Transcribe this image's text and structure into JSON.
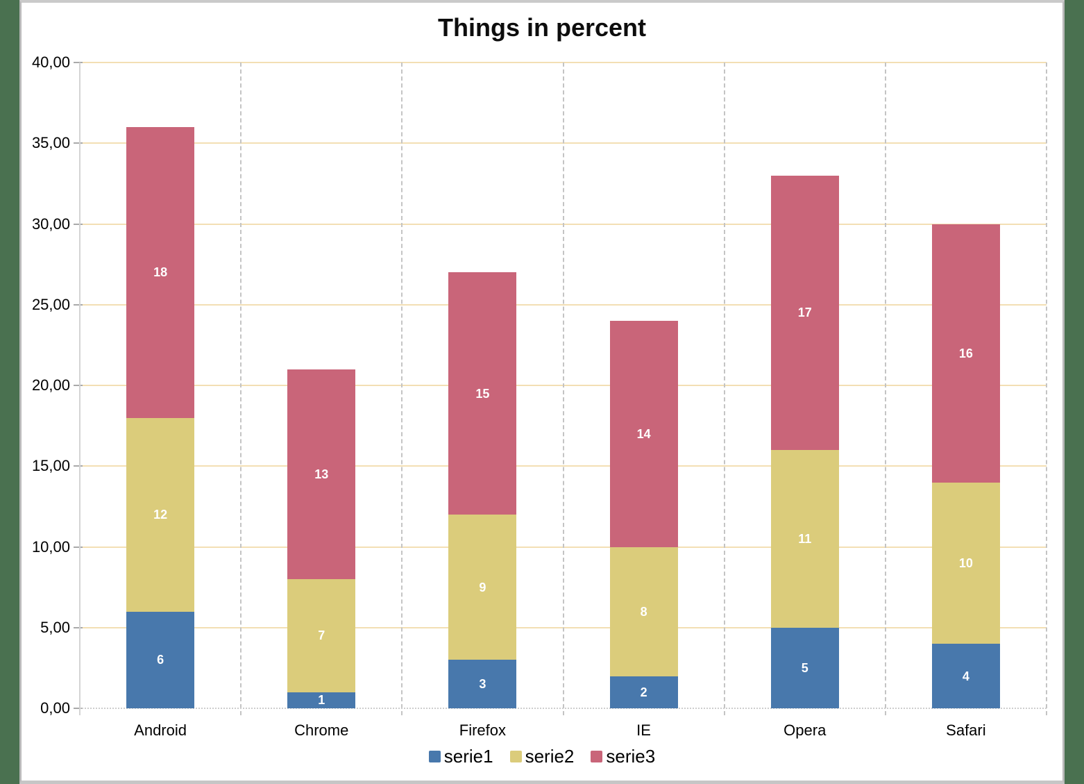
{
  "frame": {
    "desktop_background_color": "#4a7150",
    "page_background_color": "#ffffff",
    "page_border_color": "#c0c0c0"
  },
  "chart_data": {
    "type": "bar",
    "stacked": true,
    "title": "Things in percent",
    "categories": [
      "Android",
      "Chrome",
      "Firefox",
      "IE",
      "Opera",
      "Safari"
    ],
    "series": [
      {
        "name": "serie1",
        "color": "#4878ac",
        "values": [
          6,
          1,
          3,
          2,
          5,
          4
        ]
      },
      {
        "name": "serie2",
        "color": "#dbcc7b",
        "values": [
          12,
          7,
          9,
          8,
          11,
          10
        ]
      },
      {
        "name": "serie3",
        "color": "#c96579",
        "values": [
          18,
          13,
          15,
          14,
          17,
          16
        ]
      }
    ],
    "totals": [
      36,
      21,
      27,
      24,
      33,
      30
    ],
    "xlabel": "",
    "ylabel": "",
    "ylim": [
      0,
      40
    ],
    "y_tick_step": 5,
    "y_tick_labels": [
      "0,00",
      "5,00",
      "10,00",
      "15,00",
      "20,00",
      "25,00",
      "30,00",
      "35,00",
      "40,00"
    ],
    "data_labels": "white bold values centered inside each stacked segment",
    "grid": {
      "horizontal": "on",
      "horizontal_color": "#f3dfb4",
      "vertical": "dashed category separators",
      "vertical_color": "#c4c4c4"
    },
    "axis_line_color": "#d4d4d4",
    "tick_mark_color": "#a9a9a9",
    "baseline_style": "dotted",
    "legend_position": "bottom-center",
    "legend": [
      "serie1",
      "serie2",
      "serie3"
    ]
  }
}
